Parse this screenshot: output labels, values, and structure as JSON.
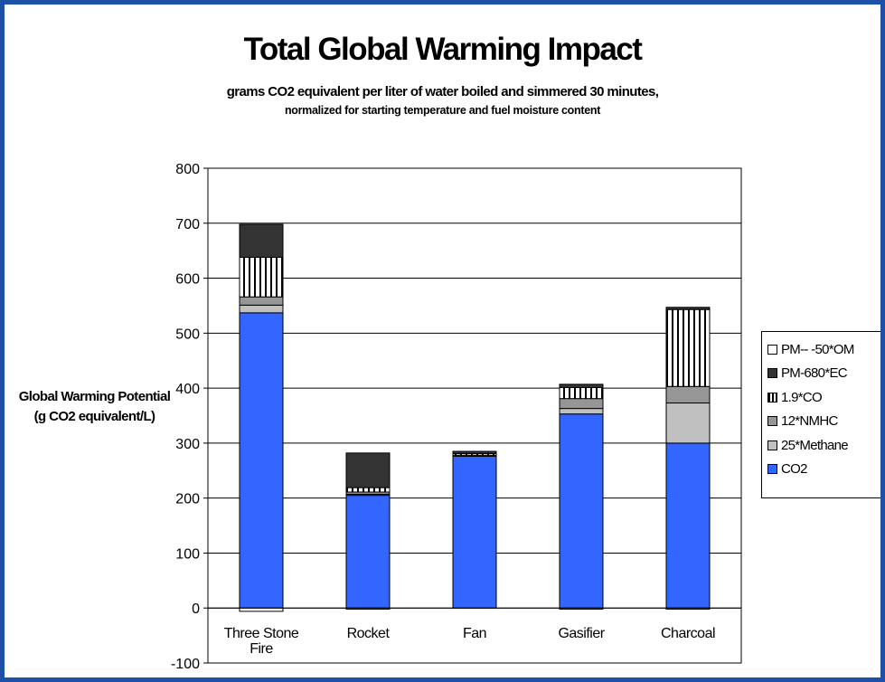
{
  "chart_data": {
    "type": "bar",
    "stacked": true,
    "title": "Total Global Warming Impact",
    "subtitle": [
      "grams CO2 equivalent per liter of water boiled and simmered 30 minutes,",
      "normalized for starting temperature and fuel moisture content"
    ],
    "ylabel": "Global Warming Potential (g CO2 equivalent/L)",
    "ylim": [
      -100,
      800
    ],
    "yticks": [
      "800",
      "700",
      "600",
      "500",
      "400",
      "300",
      "200",
      "100",
      "0",
      "-100"
    ],
    "ytick_values": [
      800,
      700,
      600,
      500,
      400,
      300,
      200,
      100,
      0,
      -100
    ],
    "categories": [
      "Three Stone Fire",
      "Rocket",
      "Fan",
      "Gasifier",
      "Charcoal"
    ],
    "category_lines": [
      [
        "Three Stone",
        "Fire"
      ],
      [
        "Rocket"
      ],
      [
        "Fan"
      ],
      [
        "Gasifier"
      ],
      [
        "Charcoal"
      ]
    ],
    "negative_series": {
      "name": "PM-- -50*OM",
      "values": [
        -6,
        -2,
        0,
        -2,
        -2
      ]
    },
    "series": [
      {
        "name": "CO2",
        "values": [
          537,
          205,
          276,
          353,
          300
        ],
        "color": "#3366ff",
        "pattern": "solid"
      },
      {
        "name": "25*Methane",
        "values": [
          14,
          2,
          0,
          10,
          73
        ],
        "color": "#c0c0c0",
        "pattern": "solid"
      },
      {
        "name": "12*NMHC",
        "values": [
          15,
          4,
          2,
          18,
          30
        ],
        "color": "#969696",
        "pattern": "solid"
      },
      {
        "name": "1.9*CO",
        "values": [
          72,
          8,
          3,
          20,
          140
        ],
        "color": "#ffffff",
        "pattern": "vstripes"
      },
      {
        "name": "PM-680*EC",
        "values": [
          60,
          63,
          4,
          6,
          4
        ],
        "color": "#333333",
        "pattern": "solid"
      }
    ],
    "legend": {
      "position": "right",
      "entries": [
        {
          "name": "PM-- -50*OM",
          "color": "#ffffff",
          "pattern": "solid"
        },
        {
          "name": "PM-680*EC",
          "color": "#333333",
          "pattern": "solid"
        },
        {
          "name": "1.9*CO",
          "color": "#ffffff",
          "pattern": "vstripes"
        },
        {
          "name": "12*NMHC",
          "color": "#969696",
          "pattern": "solid"
        },
        {
          "name": "25*Methane",
          "color": "#c0c0c0",
          "pattern": "solid"
        },
        {
          "name": "CO2",
          "color": "#3366ff",
          "pattern": "solid"
        }
      ]
    },
    "grid": true
  },
  "colors": {
    "frame": "#1d51a8",
    "background": "#ffffff"
  }
}
